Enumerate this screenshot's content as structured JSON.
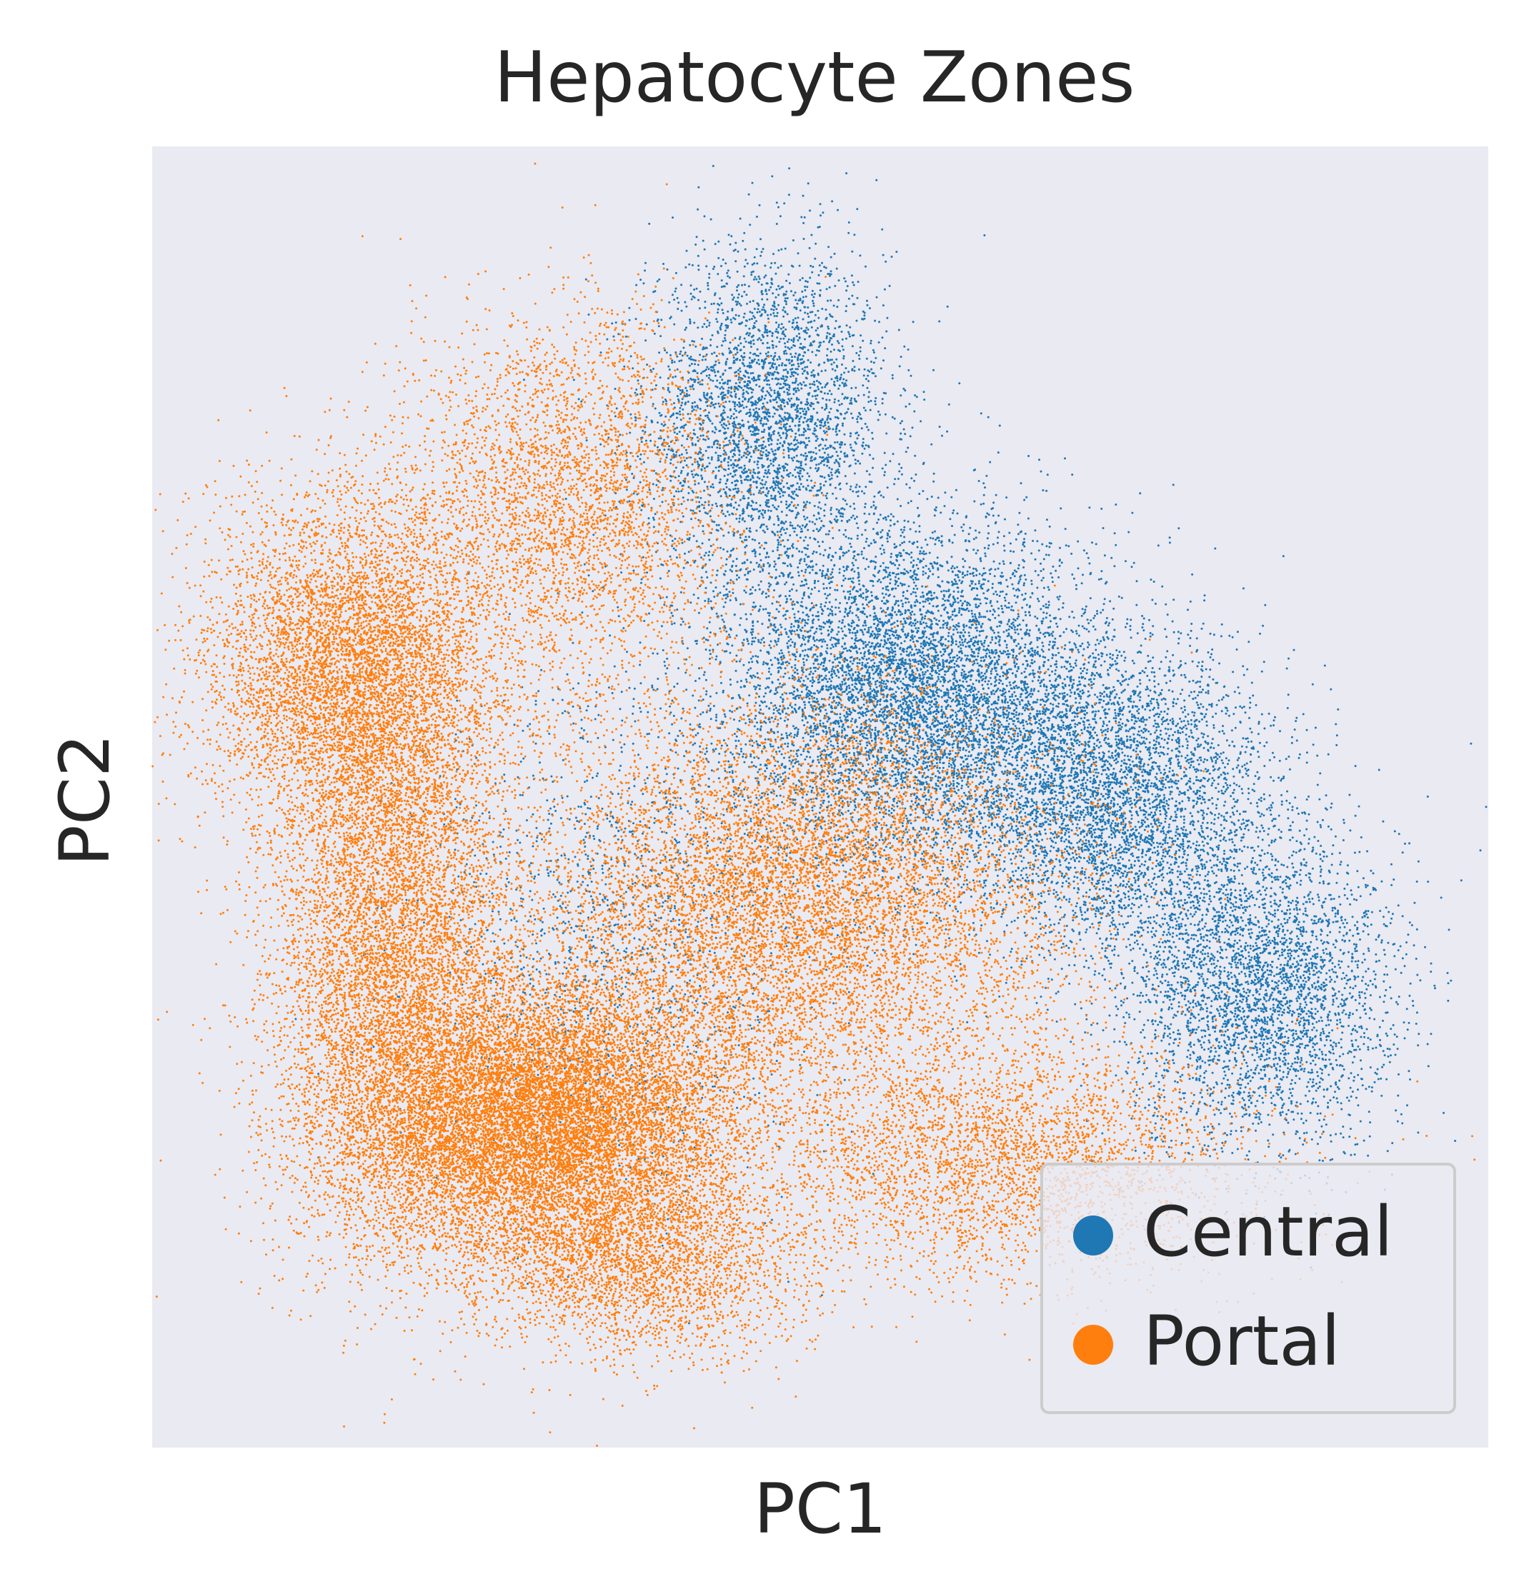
{
  "chart_data": {
    "type": "scatter",
    "title": "Hepatocyte Zones",
    "xlabel": "PC1",
    "ylabel": "PC2",
    "xlim": [
      0,
      100
    ],
    "ylim": [
      0,
      100
    ],
    "grid": false,
    "ticks": false,
    "legend_position": "bottom-right",
    "background_color": "#eaeaf2",
    "series": [
      {
        "name": "Central",
        "color": "#1f77b4",
        "clusters": [
          {
            "cx": 46,
            "cy": 79,
            "sx": 4.5,
            "sy": 6.5,
            "n": 3500
          },
          {
            "cx": 57,
            "cy": 58,
            "sx": 7.0,
            "sy": 6.5,
            "n": 7000
          },
          {
            "cx": 72,
            "cy": 50,
            "sx": 6.0,
            "sy": 6.0,
            "n": 4500
          },
          {
            "cx": 83,
            "cy": 35,
            "sx": 5.0,
            "sy": 6.0,
            "n": 3500
          },
          {
            "cx": 35,
            "cy": 40,
            "sx": 7.5,
            "sy": 10.0,
            "n": 1500
          }
        ]
      },
      {
        "name": "Portal",
        "color": "#ff7f0e",
        "clusters": [
          {
            "cx": 15,
            "cy": 60,
            "sx": 5.5,
            "sy": 6.5,
            "n": 6000
          },
          {
            "cx": 18,
            "cy": 39,
            "sx": 4.5,
            "sy": 11.0,
            "n": 7000
          },
          {
            "cx": 29,
            "cy": 25,
            "sx": 7.5,
            "sy": 5.5,
            "n": 13000
          },
          {
            "cx": 48,
            "cy": 42,
            "sx": 10.0,
            "sy": 8.0,
            "n": 9000
          },
          {
            "cx": 31,
            "cy": 73,
            "sx": 6.0,
            "sy": 7.0,
            "n": 3500
          },
          {
            "cx": 64,
            "cy": 22,
            "sx": 9.0,
            "sy": 4.5,
            "n": 3500
          },
          {
            "cx": 37,
            "cy": 14,
            "sx": 6.0,
            "sy": 3.5,
            "n": 2500
          }
        ]
      }
    ]
  }
}
